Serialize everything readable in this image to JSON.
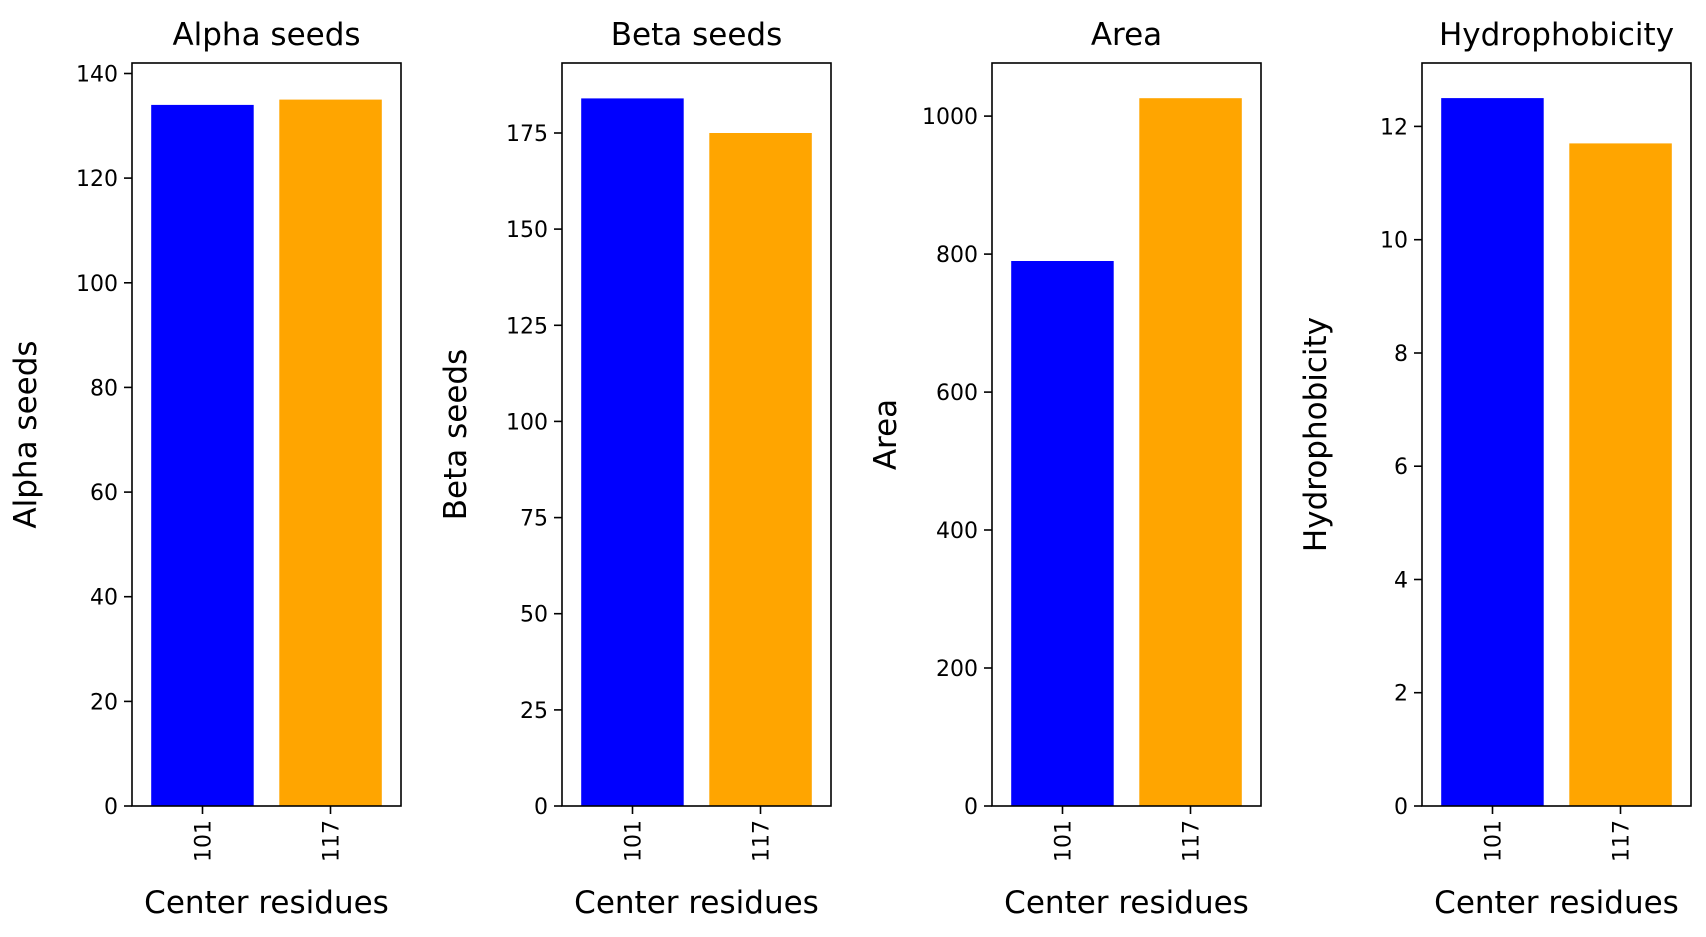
{
  "chart_data": [
    {
      "type": "bar",
      "title": "Alpha seeds",
      "xlabel": "Center residues",
      "ylabel": "Alpha seeds",
      "categories": [
        "101",
        "117"
      ],
      "values": [
        134,
        135
      ],
      "colors": [
        "#0000ff",
        "#ffa500"
      ],
      "ylim": [
        0,
        142
      ],
      "yticks": [
        0,
        20,
        40,
        60,
        80,
        100,
        120,
        140
      ],
      "grid": false
    },
    {
      "type": "bar",
      "title": "Beta seeds",
      "xlabel": "Center residues",
      "ylabel": "Beta seeds",
      "categories": [
        "101",
        "117"
      ],
      "values": [
        184,
        175
      ],
      "colors": [
        "#0000ff",
        "#ffa500"
      ],
      "ylim": [
        0,
        193.2
      ],
      "yticks": [
        0,
        25,
        50,
        75,
        100,
        125,
        150,
        175
      ],
      "grid": false
    },
    {
      "type": "bar",
      "title": "Area",
      "xlabel": "Center residues",
      "ylabel": "Area",
      "categories": [
        "101",
        "117"
      ],
      "values": [
        790,
        1026
      ],
      "colors": [
        "#0000ff",
        "#ffa500"
      ],
      "ylim": [
        0,
        1077
      ],
      "yticks": [
        0,
        200,
        400,
        600,
        800,
        1000
      ],
      "grid": false
    },
    {
      "type": "bar",
      "title": "Hydrophobicity",
      "xlabel": "Center residues",
      "ylabel": "Hydrophobicity",
      "categories": [
        "101",
        "117"
      ],
      "values": [
        12.5,
        11.7
      ],
      "colors": [
        "#0000ff",
        "#ffa500"
      ],
      "ylim": [
        0,
        13.12
      ],
      "yticks": [
        0,
        2,
        4,
        6,
        8,
        10,
        12
      ],
      "grid": false
    }
  ]
}
